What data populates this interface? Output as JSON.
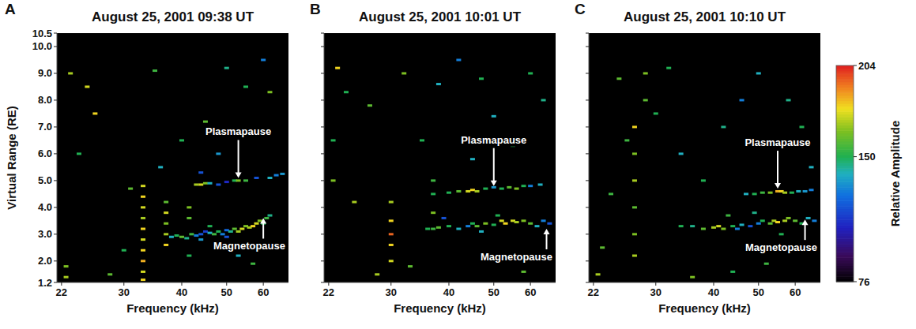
{
  "chart_data": [
    {
      "type": "heatmap",
      "label": "A",
      "title": "August 25, 2001 09:38 UT",
      "xlabel": "Frequency (kHz)",
      "ylabel": "Virtual Range (RE)",
      "log": "x",
      "xlim": [
        21.5,
        68
      ],
      "ylim": [
        1.2,
        10.5
      ],
      "xticks": [
        22,
        30,
        40,
        50,
        60
      ],
      "yticks": [
        1.2,
        {
          "value": 2,
          "label": "2.0"
        },
        {
          "value": 3,
          "label": "3.0"
        },
        {
          "value": 4,
          "label": "4.0"
        },
        {
          "value": 5,
          "label": "5.0"
        },
        {
          "value": 6,
          "label": "6.0"
        },
        {
          "value": 7,
          "label": "7.0"
        },
        {
          "value": 8,
          "label": "8.0"
        },
        {
          "value": 9,
          "label": "9.0"
        },
        {
          "value": 10,
          "label": "10.0"
        },
        10.5
      ],
      "annotations": [
        {
          "text": "Plasmapause",
          "x": 53,
          "y": 5.1,
          "position": "above"
        },
        {
          "text": "Magnetopause",
          "x": 60,
          "y": 3.6,
          "position": "below"
        }
      ],
      "cells": [
        [
          38,
          2.9,
          140
        ],
        [
          39,
          2.95,
          150
        ],
        [
          40,
          2.9,
          160
        ],
        [
          41,
          2.85,
          145
        ],
        [
          42,
          3.0,
          155
        ],
        [
          43,
          2.95,
          130
        ],
        [
          44,
          3.0,
          120
        ],
        [
          45,
          3.1,
          115
        ],
        [
          46,
          3.05,
          140
        ],
        [
          47,
          3.0,
          155
        ],
        [
          48,
          3.1,
          150
        ],
        [
          49,
          3.0,
          130
        ],
        [
          50,
          3.15,
          125
        ],
        [
          51,
          3.1,
          145
        ],
        [
          52,
          3.2,
          160
        ],
        [
          53,
          3.1,
          170
        ],
        [
          54,
          3.2,
          175
        ],
        [
          55,
          3.3,
          165
        ],
        [
          56,
          3.25,
          170
        ],
        [
          57,
          3.3,
          180
        ],
        [
          58,
          3.4,
          175
        ],
        [
          59,
          3.5,
          165
        ],
        [
          60,
          3.4,
          150
        ],
        [
          61,
          3.6,
          155
        ],
        [
          62,
          3.7,
          145
        ],
        [
          50,
          2.9,
          120
        ],
        [
          46,
          3.3,
          150
        ],
        [
          44,
          2.8,
          135
        ],
        [
          43,
          4.85,
          170
        ],
        [
          44,
          4.85,
          175
        ],
        [
          45,
          4.9,
          165
        ],
        [
          46,
          4.9,
          140
        ],
        [
          48,
          4.85,
          120
        ],
        [
          50,
          4.95,
          110
        ],
        [
          52,
          5.0,
          150
        ],
        [
          53,
          5.0,
          165
        ],
        [
          55,
          5.0,
          155
        ],
        [
          58,
          5.1,
          120
        ],
        [
          62,
          5.1,
          140
        ],
        [
          64,
          5.2,
          130
        ],
        [
          66,
          5.25,
          135
        ],
        [
          33,
          1.3,
          180
        ],
        [
          33,
          1.6,
          175
        ],
        [
          33,
          2.0,
          185
        ],
        [
          33,
          2.4,
          180
        ],
        [
          33,
          2.8,
          175
        ],
        [
          33,
          3.2,
          180
        ],
        [
          33,
          3.6,
          170
        ],
        [
          33,
          4.0,
          175
        ],
        [
          33,
          4.4,
          180
        ],
        [
          33,
          4.8,
          175
        ],
        [
          37,
          2.6,
          180
        ],
        [
          37,
          3.0,
          170
        ],
        [
          37,
          3.4,
          165
        ],
        [
          37,
          3.8,
          175
        ],
        [
          37,
          4.2,
          160
        ],
        [
          41.5,
          2.2,
          150
        ],
        [
          41.5,
          3.6,
          160
        ],
        [
          41.5,
          4.0,
          165
        ],
        [
          23,
          9.0,
          170
        ],
        [
          25,
          8.5,
          175
        ],
        [
          26,
          7.5,
          180
        ],
        [
          24,
          6.0,
          150
        ],
        [
          22.5,
          1.4,
          170
        ],
        [
          22.5,
          1.8,
          165
        ],
        [
          28,
          1.5,
          160
        ],
        [
          30,
          2.4,
          150
        ],
        [
          31,
          4.7,
          160
        ],
        [
          36,
          5.5,
          140
        ],
        [
          40,
          6.5,
          150
        ],
        [
          45,
          7.2,
          160
        ],
        [
          50,
          9.2,
          145
        ],
        [
          55,
          8.5,
          150
        ],
        [
          58,
          7.0,
          150
        ],
        [
          62,
          8.3,
          165
        ],
        [
          60,
          9.5,
          130
        ],
        [
          35,
          9.1,
          155
        ],
        [
          48,
          6.0,
          135
        ],
        [
          53,
          2.2,
          140
        ],
        [
          57,
          1.9,
          155
        ],
        [
          44,
          5.3,
          120
        ]
      ]
    },
    {
      "type": "heatmap",
      "label": "B",
      "title": "August 25, 2001 10:01 UT",
      "xlabel": "Frequency (kHz)",
      "tick_labels": "x",
      "log": "x",
      "xlim": [
        21.5,
        68
      ],
      "ylim": [
        1.2,
        10.5
      ],
      "xticks": [
        22,
        30,
        40,
        50,
        60
      ],
      "yticks": [
        1.2,
        2,
        3,
        4,
        5,
        6,
        7,
        8,
        9,
        10,
        10.5
      ],
      "annotations": [
        {
          "text": "Plasmapause",
          "x": 50,
          "y": 4.8,
          "position": "above"
        },
        {
          "text": "Magnetopause",
          "x": 65,
          "y": 3.2,
          "position": "below"
        }
      ],
      "cells": [
        [
          36,
          3.2,
          150
        ],
        [
          37,
          3.2,
          155
        ],
        [
          38,
          3.25,
          160
        ],
        [
          40,
          3.3,
          150
        ],
        [
          42,
          3.2,
          140
        ],
        [
          44,
          3.3,
          130
        ],
        [
          45,
          3.4,
          150
        ],
        [
          46,
          3.3,
          160
        ],
        [
          48,
          3.4,
          165
        ],
        [
          50,
          3.35,
          150
        ],
        [
          52,
          3.5,
          175
        ],
        [
          53,
          3.4,
          180
        ],
        [
          55,
          3.5,
          175
        ],
        [
          56,
          3.45,
          170
        ],
        [
          58,
          3.5,
          165
        ],
        [
          60,
          3.4,
          160
        ],
        [
          62,
          3.3,
          140
        ],
        [
          64,
          3.5,
          130
        ],
        [
          66,
          3.4,
          120
        ],
        [
          39,
          3.6,
          120
        ],
        [
          47,
          3.1,
          140
        ],
        [
          51,
          3.7,
          150
        ],
        [
          40,
          4.55,
          150
        ],
        [
          42,
          4.6,
          160
        ],
        [
          44,
          4.6,
          175
        ],
        [
          45,
          4.65,
          180
        ],
        [
          46,
          4.6,
          170
        ],
        [
          48,
          4.7,
          150
        ],
        [
          50,
          4.75,
          135
        ],
        [
          52,
          4.7,
          150
        ],
        [
          54,
          4.75,
          160
        ],
        [
          56,
          4.7,
          165
        ],
        [
          58,
          4.8,
          150
        ],
        [
          60,
          4.8,
          130
        ],
        [
          63,
          4.85,
          140
        ],
        [
          30,
          2.0,
          175
        ],
        [
          30,
          2.6,
          180
        ],
        [
          30,
          3.0,
          195
        ],
        [
          30,
          3.5,
          180
        ],
        [
          30,
          4.2,
          170
        ],
        [
          37,
          3.8,
          165
        ],
        [
          37,
          4.5,
          150
        ],
        [
          37,
          5.0,
          155
        ],
        [
          23,
          9.2,
          180
        ],
        [
          24,
          8.3,
          150
        ],
        [
          27,
          7.8,
          160
        ],
        [
          22.5,
          6.5,
          150
        ],
        [
          22.5,
          5.0,
          165
        ],
        [
          25,
          4.2,
          170
        ],
        [
          28,
          1.5,
          170
        ],
        [
          33,
          1.8,
          160
        ],
        [
          32,
          9.0,
          165
        ],
        [
          38,
          8.6,
          140
        ],
        [
          42,
          9.5,
          130
        ],
        [
          47,
          8.8,
          150
        ],
        [
          50,
          7.4,
          140
        ],
        [
          55,
          6.3,
          150
        ],
        [
          60,
          9.0,
          150
        ],
        [
          64,
          8.0,
          145
        ],
        [
          52,
          2.0,
          150
        ],
        [
          58,
          1.6,
          160
        ],
        [
          45,
          5.8,
          140
        ],
        [
          35,
          6.5,
          150
        ]
      ]
    },
    {
      "type": "heatmap",
      "label": "C",
      "title": "August 25, 2001 10:10 UT",
      "xlabel": "Frequency (kHz)",
      "tick_labels": "x",
      "log": "x",
      "xlim": [
        21.5,
        68
      ],
      "ylim": [
        1.2,
        10.5
      ],
      "xticks": [
        22,
        30,
        40,
        50,
        60
      ],
      "yticks": [
        1.2,
        2,
        3,
        4,
        5,
        6,
        7,
        8,
        9,
        10,
        10.5
      ],
      "annotations": [
        {
          "text": "Plasmapause",
          "x": 55,
          "y": 4.7,
          "position": "above"
        },
        {
          "text": "Magnetopause",
          "x": 63,
          "y": 3.55,
          "position": "below"
        }
      ],
      "colorbar": {
        "label": "Relative Amplitude",
        "range": [
          76,
          204
        ],
        "ticks": [
          76,
          150,
          204
        ]
      },
      "cells": [
        [
          34,
          3.3,
          150
        ],
        [
          36,
          3.3,
          145
        ],
        [
          38,
          3.2,
          160
        ],
        [
          40,
          3.25,
          170
        ],
        [
          41,
          3.3,
          175
        ],
        [
          42,
          3.2,
          165
        ],
        [
          44,
          3.3,
          150
        ],
        [
          45,
          3.2,
          130
        ],
        [
          46,
          3.35,
          140
        ],
        [
          48,
          3.3,
          120
        ],
        [
          50,
          3.4,
          130
        ],
        [
          51,
          3.5,
          150
        ],
        [
          53,
          3.4,
          160
        ],
        [
          54,
          3.5,
          170
        ],
        [
          55,
          3.45,
          180
        ],
        [
          57,
          3.5,
          170
        ],
        [
          58,
          3.6,
          165
        ],
        [
          60,
          3.5,
          160
        ],
        [
          62,
          3.4,
          150
        ],
        [
          64,
          3.6,
          140
        ],
        [
          66,
          3.5,
          130
        ],
        [
          49,
          3.8,
          145
        ],
        [
          56,
          3.0,
          150
        ],
        [
          43,
          3.7,
          155
        ],
        [
          47,
          4.5,
          140
        ],
        [
          49,
          4.5,
          150
        ],
        [
          51,
          4.55,
          155
        ],
        [
          53,
          4.55,
          165
        ],
        [
          55,
          4.6,
          185
        ],
        [
          56,
          4.6,
          180
        ],
        [
          57,
          4.55,
          170
        ],
        [
          59,
          4.55,
          150
        ],
        [
          61,
          4.6,
          140
        ],
        [
          63,
          4.6,
          135
        ],
        [
          65,
          4.65,
          130
        ],
        [
          27,
          2.2,
          170
        ],
        [
          27,
          3.0,
          165
        ],
        [
          27,
          4.0,
          160
        ],
        [
          27,
          5.0,
          170
        ],
        [
          27,
          6.0,
          165
        ],
        [
          27,
          7.0,
          180
        ],
        [
          28.5,
          8.0,
          160
        ],
        [
          28.5,
          9.0,
          165
        ],
        [
          26,
          6.5,
          155
        ],
        [
          30,
          7.5,
          150
        ],
        [
          22.5,
          1.5,
          170
        ],
        [
          23,
          2.5,
          160
        ],
        [
          24,
          4.5,
          155
        ],
        [
          25,
          8.8,
          160
        ],
        [
          32,
          9.2,
          150
        ],
        [
          34,
          6.0,
          140
        ],
        [
          38,
          5.0,
          150
        ],
        [
          42,
          7.0,
          145
        ],
        [
          46,
          8.0,
          130
        ],
        [
          50,
          9.0,
          140
        ],
        [
          54,
          6.5,
          150
        ],
        [
          58,
          8.0,
          145
        ],
        [
          62,
          7.0,
          150
        ],
        [
          65,
          5.5,
          140
        ],
        [
          44,
          1.6,
          150
        ],
        [
          52,
          1.9,
          155
        ],
        [
          60,
          2.4,
          150
        ],
        [
          36,
          1.4,
          165
        ]
      ]
    }
  ]
}
